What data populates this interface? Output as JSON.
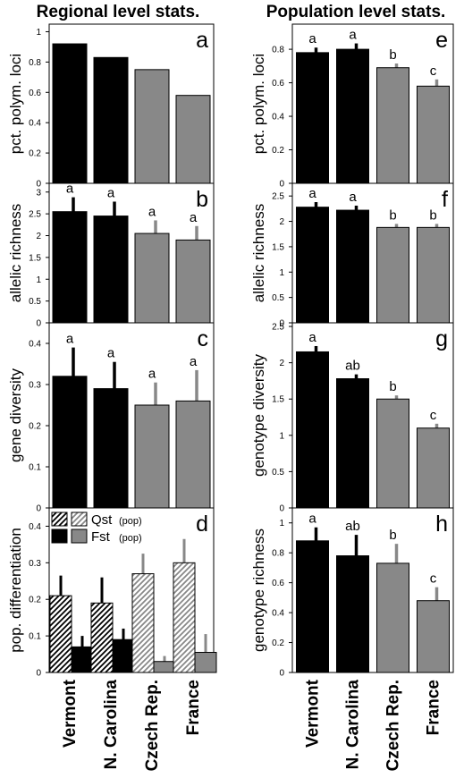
{
  "headings": {
    "left": "Regional level stats.",
    "right": "Population level stats."
  },
  "categories": [
    "Vermont",
    "N. Carolina",
    "Czech Rep.",
    "France"
  ],
  "colors": {
    "north_america": "#000000",
    "europe": "#888888",
    "hatch_black": "#000000",
    "hatch_gray": "#888888"
  },
  "chart_data": [
    {
      "type": "bar",
      "panel": "a",
      "ylabel": "pct. polym. loci",
      "ylim": [
        0,
        1.05
      ],
      "yticks": [
        0,
        0.2,
        0.4,
        0.6,
        0.8,
        1
      ],
      "values": [
        0.92,
        0.83,
        0.75,
        0.58
      ],
      "errors": [
        null,
        null,
        null,
        null
      ],
      "letters": [
        "",
        "",
        "",
        ""
      ]
    },
    {
      "type": "bar",
      "panel": "b",
      "ylabel": "allelic richness",
      "ylim": [
        0,
        3.2
      ],
      "yticks": [
        0,
        0.5,
        1,
        1.5,
        2,
        2.5,
        3
      ],
      "values": [
        2.55,
        2.45,
        2.05,
        1.9
      ],
      "errors": [
        0.33,
        0.33,
        0.3,
        0.32
      ],
      "letters": [
        "a",
        "a",
        "a",
        "a"
      ]
    },
    {
      "type": "bar",
      "panel": "c",
      "ylabel": "gene diversity",
      "ylim": [
        0,
        0.45
      ],
      "yticks": [
        0,
        0.1,
        0.2,
        0.3,
        0.4
      ],
      "values": [
        0.32,
        0.29,
        0.25,
        0.26
      ],
      "errors": [
        0.07,
        0.065,
        0.055,
        0.075
      ],
      "letters": [
        "a",
        "a",
        "a",
        "a"
      ]
    },
    {
      "type": "bar",
      "panel": "d",
      "ylabel": "pop. differentiation",
      "ylim": [
        0,
        0.45
      ],
      "yticks": [
        0,
        0.1,
        0.2,
        0.3,
        0.4
      ],
      "legend": {
        "qst": "Qst",
        "fst": "Fst",
        "suffix": "(pop)"
      },
      "series": [
        {
          "name": "Qst",
          "values": [
            0.21,
            0.19,
            0.27,
            0.3
          ],
          "errors": [
            0.055,
            0.07,
            0.055,
            0.065
          ]
        },
        {
          "name": "Fst",
          "values": [
            0.07,
            0.09,
            0.03,
            0.055
          ],
          "errors": [
            0.03,
            0.03,
            0.015,
            0.05
          ]
        }
      ]
    },
    {
      "type": "bar",
      "panel": "e",
      "ylabel": "pct. polym. loci",
      "ylim": [
        0,
        0.95
      ],
      "yticks": [
        0,
        0.2,
        0.4,
        0.6,
        0.8
      ],
      "values": [
        0.78,
        0.8,
        0.69,
        0.58
      ],
      "errors": [
        0.03,
        0.035,
        0.025,
        0.04
      ],
      "letters": [
        "a",
        "a",
        "b",
        "c"
      ]
    },
    {
      "type": "bar",
      "panel": "f",
      "ylabel": "allelic richness",
      "ylim": [
        0,
        2.75
      ],
      "yticks": [
        0,
        0.5,
        1,
        1.5,
        2,
        2.5
      ],
      "values": [
        2.28,
        2.22,
        1.88,
        1.88
      ],
      "errors": [
        0.1,
        0.09,
        0.07,
        0.07
      ],
      "letters": [
        "a",
        "a",
        "b",
        "b"
      ]
    },
    {
      "type": "bar",
      "panel": "g",
      "ylabel": "genotype diversity",
      "ylim": [
        0,
        2.55
      ],
      "yticks": [
        0,
        0.5,
        1,
        1.5,
        2,
        2.5
      ],
      "values": [
        2.15,
        1.78,
        1.5,
        1.1
      ],
      "errors": [
        0.08,
        0.06,
        0.05,
        0.06
      ],
      "letters": [
        "a",
        "ab",
        "b",
        "c"
      ]
    },
    {
      "type": "bar",
      "panel": "h",
      "ylabel": "genotype richness",
      "ylim": [
        0,
        1.1
      ],
      "yticks": [
        0,
        0.2,
        0.4,
        0.6,
        0.8,
        1
      ],
      "values": [
        0.88,
        0.78,
        0.73,
        0.48
      ],
      "errors": [
        0.09,
        0.14,
        0.13,
        0.09
      ],
      "letters": [
        "a",
        "ab",
        "b",
        "c"
      ]
    }
  ]
}
